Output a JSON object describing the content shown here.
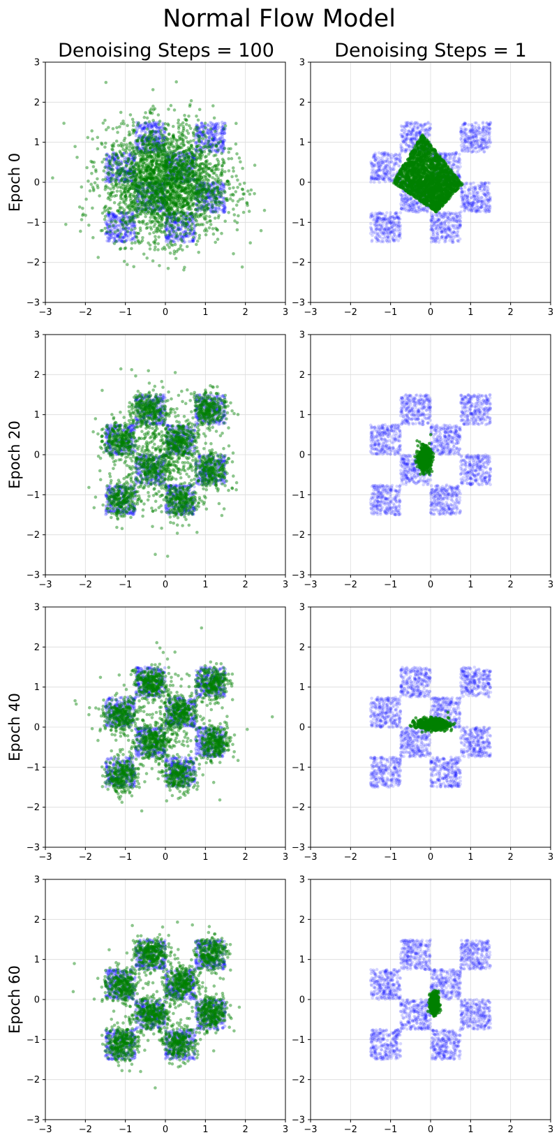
{
  "figure": {
    "title": "Normal Flow Model",
    "column_titles": [
      "Denoising Steps = 100",
      "Denoising Steps = 1"
    ],
    "row_labels": [
      "Epoch 0",
      "Epoch 20",
      "Epoch 40",
      "Epoch 60"
    ],
    "colors": {
      "target": "#0000ff",
      "samples": "#008000",
      "grid": "#dcdcdc"
    }
  },
  "chart_data": {
    "type": "scatter",
    "layout": "4x2 subplot grid",
    "grid": true,
    "xlim": [
      -3,
      3
    ],
    "ylim": [
      -3,
      3
    ],
    "xticks": [
      "−3",
      "−2",
      "−1",
      "0",
      "1",
      "2",
      "3"
    ],
    "yticks": [
      "−3",
      "−2",
      "−1",
      "0",
      "1",
      "2",
      "3"
    ],
    "target_distribution": {
      "shape": "checkerboard",
      "squares": [
        {
          "x": [
            -0.75,
            0.0
          ],
          "y": [
            0.75,
            1.5
          ]
        },
        {
          "x": [
            0.75,
            1.5
          ],
          "y": [
            0.75,
            1.5
          ]
        },
        {
          "x": [
            -1.5,
            -0.75
          ],
          "y": [
            0.0,
            0.75
          ]
        },
        {
          "x": [
            0.0,
            0.75
          ],
          "y": [
            0.0,
            0.75
          ]
        },
        {
          "x": [
            -0.75,
            0.0
          ],
          "y": [
            -0.75,
            0.0
          ]
        },
        {
          "x": [
            0.75,
            1.5
          ],
          "y": [
            -0.75,
            0.0
          ]
        },
        {
          "x": [
            -1.5,
            -0.75
          ],
          "y": [
            -1.5,
            -0.75
          ]
        },
        {
          "x": [
            0.0,
            0.75
          ],
          "y": [
            -1.5,
            -0.75
          ]
        }
      ]
    },
    "panels": [
      {
        "epoch": 0,
        "steps": 100,
        "samples": {
          "kind": "gaussian",
          "center": [
            0,
            0
          ],
          "std": [
            0.75,
            0.7
          ]
        }
      },
      {
        "epoch": 0,
        "steps": 1,
        "samples": {
          "kind": "diamond",
          "vertices": [
            [
              -0.95,
              0.0
            ],
            [
              -0.2,
              1.2
            ],
            [
              0.8,
              -0.05
            ],
            [
              0.15,
              -0.75
            ]
          ]
        }
      },
      {
        "epoch": 20,
        "steps": 100,
        "samples": {
          "kind": "blobs",
          "spread": 0.22,
          "noise": 0.18,
          "centers": [
            [
              -0.4,
              1.1
            ],
            [
              1.1,
              1.15
            ],
            [
              -1.15,
              0.35
            ],
            [
              0.3,
              0.3
            ],
            [
              -0.35,
              -0.3
            ],
            [
              1.15,
              -0.4
            ],
            [
              -1.1,
              -1.1
            ],
            [
              0.4,
              -1.15
            ]
          ]
        }
      },
      {
        "epoch": 20,
        "steps": 1,
        "samples": {
          "kind": "cluster",
          "center": [
            -0.15,
            -0.1
          ],
          "std": [
            0.08,
            0.14
          ]
        }
      },
      {
        "epoch": 40,
        "steps": 100,
        "samples": {
          "kind": "blobs",
          "spread": 0.2,
          "noise": 0.12,
          "centers": [
            [
              -0.35,
              1.1
            ],
            [
              1.2,
              1.1
            ],
            [
              -1.15,
              0.3
            ],
            [
              0.35,
              0.35
            ],
            [
              -0.3,
              -0.35
            ],
            [
              1.25,
              -0.4
            ],
            [
              -1.1,
              -1.2
            ],
            [
              0.35,
              -1.2
            ]
          ]
        }
      },
      {
        "epoch": 40,
        "steps": 1,
        "samples": {
          "kind": "cluster",
          "center": [
            0.05,
            0.07
          ],
          "std": [
            0.2,
            0.07
          ]
        }
      },
      {
        "epoch": 60,
        "steps": 100,
        "samples": {
          "kind": "blobs",
          "spread": 0.2,
          "noise": 0.08,
          "centers": [
            [
              -0.35,
              1.15
            ],
            [
              1.15,
              1.15
            ],
            [
              -1.1,
              0.35
            ],
            [
              0.4,
              0.4
            ],
            [
              -0.35,
              -0.35
            ],
            [
              1.15,
              -0.35
            ],
            [
              -1.1,
              -1.1
            ],
            [
              0.35,
              -1.1
            ]
          ]
        }
      },
      {
        "epoch": 60,
        "steps": 1,
        "samples": {
          "kind": "cluster",
          "center": [
            0.1,
            -0.1
          ],
          "std": [
            0.05,
            0.13
          ]
        }
      }
    ]
  }
}
